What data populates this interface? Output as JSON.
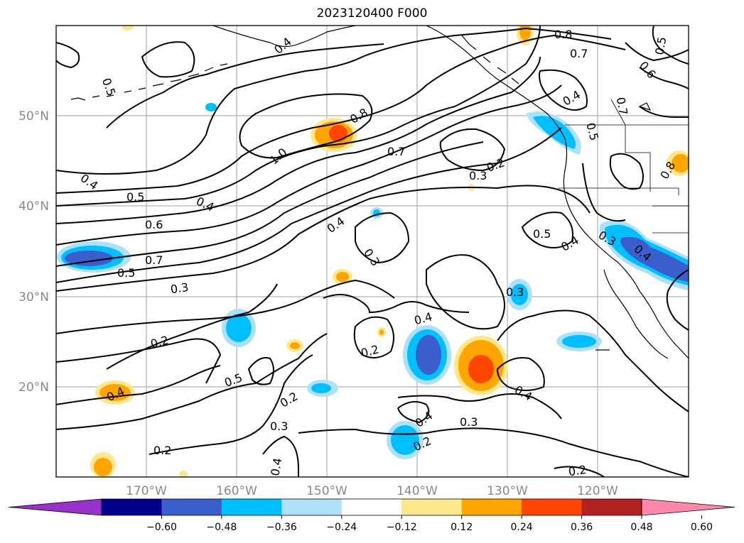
{
  "title": "2023120400 F000",
  "longitude_ticks": [
    "170°W",
    "160°W",
    "150°W",
    "140°W",
    "130°W",
    "120°W"
  ],
  "latitude_ticks": [
    "50°N",
    "40°N",
    "30°N",
    "20°N"
  ],
  "colorbar": {
    "ticks": [
      "−0.60",
      "−0.48",
      "−0.36",
      "−0.24",
      "−0.12",
      "0.12",
      "0.24",
      "0.36",
      "0.48",
      "0.60"
    ],
    "colors": [
      "#9932CC",
      "#00008B",
      "#3A5FCD",
      "#00BFFF",
      "#ADE1FA",
      "#FFFFFF",
      "#FFE88C",
      "#FFA500",
      "#FF4500",
      "#B22222",
      "#FF88AA"
    ]
  },
  "contour_labels": [
    "0.5",
    "0.4",
    "0.8",
    "0.7",
    "0.5",
    "0.6",
    "0.4",
    "0.7",
    "0.5",
    "1.0",
    "0.8",
    "0.7",
    "0.3",
    "0.2",
    "0.8",
    "0.4",
    "0.4",
    "0.5",
    "0.6",
    "0.7",
    "0.5",
    "0.3",
    "0.4",
    "0.3",
    "0.5",
    "0.4",
    "0.3",
    "0.4",
    "0.3",
    "0.2",
    "0.2",
    "0.4",
    "0.4",
    "0.5",
    "0.2",
    "0.3",
    "0.2",
    "0.4",
    "0.3",
    "0.2",
    "0.4",
    "0.2"
  ]
}
